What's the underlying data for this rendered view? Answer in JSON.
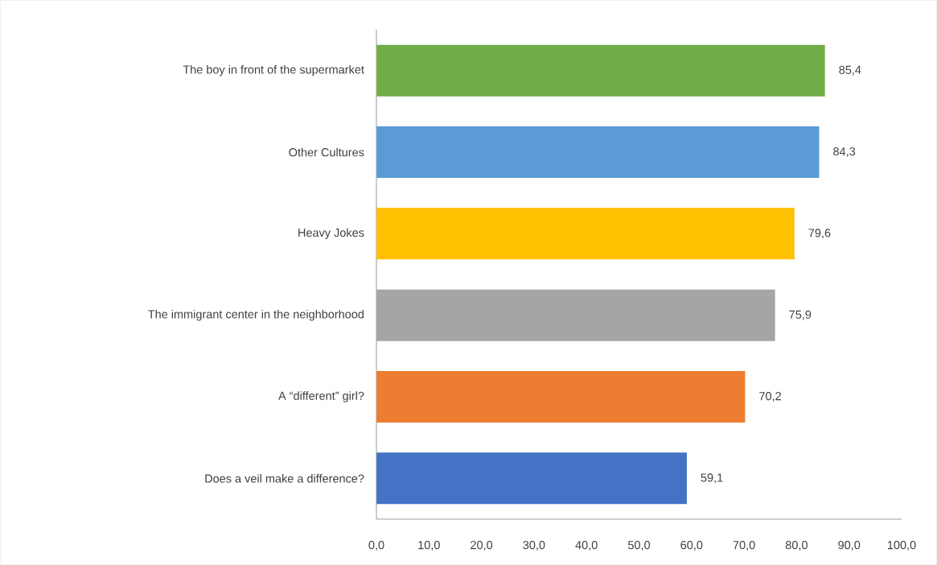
{
  "chart_data": {
    "type": "bar",
    "orientation": "horizontal",
    "categories": [
      "The boy in front of the supermarket",
      "Other Cultures",
      "Heavy Jokes",
      "The immigrant center in the neighborhood",
      "A “different” girl?",
      "Does a veil make a difference?"
    ],
    "values": [
      85.4,
      84.3,
      79.6,
      75.9,
      70.2,
      59.1
    ],
    "colors": [
      "#70ad47",
      "#5b9bd5",
      "#ffc000",
      "#a5a5a5",
      "#ed7d31",
      "#4472c4"
    ],
    "value_labels": [
      "85,4",
      "84,3",
      "79,6",
      "75,9",
      "70,2",
      "59,1"
    ],
    "xlim": [
      0,
      100
    ],
    "xticks": [
      {
        "value": 0,
        "label": "0,0"
      },
      {
        "value": 10,
        "label": "10,0"
      },
      {
        "value": 20,
        "label": "20,0"
      },
      {
        "value": 30,
        "label": "30,0"
      },
      {
        "value": 40,
        "label": "40,0"
      },
      {
        "value": 50,
        "label": "50,0"
      },
      {
        "value": 60,
        "label": "60,0"
      },
      {
        "value": 70,
        "label": "70,0"
      },
      {
        "value": 80,
        "label": "80,0"
      },
      {
        "value": 90,
        "label": "90,0"
      },
      {
        "value": 100,
        "label": "100,0"
      }
    ]
  }
}
